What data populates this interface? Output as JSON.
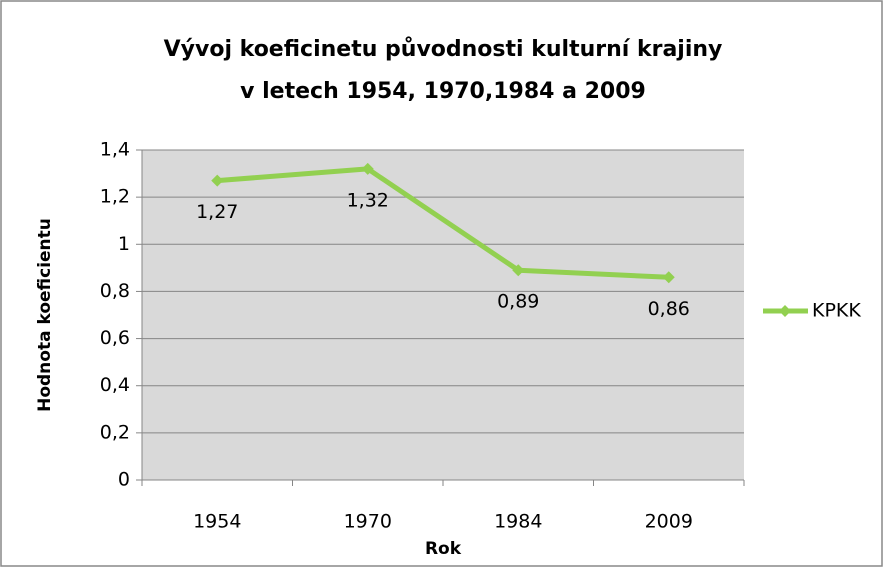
{
  "chart_data": {
    "type": "line",
    "title": [
      "Vývoj koeficinetu původnosti kulturní krajiny",
      "v letech 1954, 1970,1984 a 2009"
    ],
    "x_label": "Rok",
    "y_label": "Hodnota koeficientu",
    "categories": [
      "1954",
      "1970",
      "1984",
      "2009"
    ],
    "series": [
      {
        "name": "KPKK",
        "color": "#92d050",
        "values": [
          1.27,
          1.32,
          0.89,
          0.86
        ],
        "value_labels": [
          "1,27",
          "1,32",
          "0,89",
          "0,86"
        ]
      }
    ],
    "ylim": [
      0,
      1.4
    ],
    "yticks": [
      0,
      {
        "value": 0.2,
        "label": "0,2"
      },
      {
        "value": 0.4,
        "label": "0,4"
      },
      {
        "value": 0.6,
        "label": "0,6"
      },
      {
        "value": 0.8,
        "label": "0,8"
      },
      1,
      {
        "value": 1.2,
        "label": "1,2"
      },
      {
        "value": 1.4,
        "label": "1,4"
      }
    ],
    "grid": true,
    "legend": "right"
  }
}
